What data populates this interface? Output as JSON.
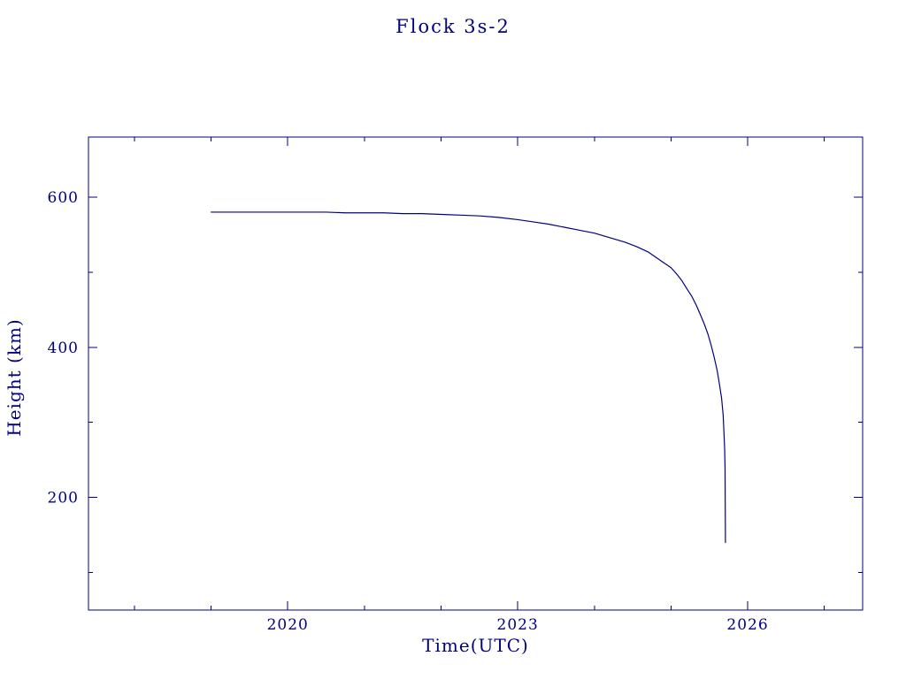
{
  "page": {
    "background_color": "#ffffff"
  },
  "chart_data": {
    "type": "line",
    "title": "Flock 3s-2",
    "xlabel": "Time(UTC)",
    "ylabel": "Height (km)",
    "xlim": [
      2017.4,
      2027.5
    ],
    "ylim": [
      50,
      680
    ],
    "x_major_ticks": [
      2020,
      2023,
      2026
    ],
    "x_minor_ticks": [
      2018,
      2019,
      2021,
      2022,
      2024,
      2025,
      2027
    ],
    "y_major_ticks": [
      200,
      400,
      600
    ],
    "y_minor_ticks": [
      100,
      300,
      500
    ],
    "grid": false,
    "legend": "none",
    "line_color": "#000080",
    "axis_color": "#000080",
    "series": [
      {
        "name": "orbital height",
        "points": [
          [
            2019.0,
            580
          ],
          [
            2019.25,
            580
          ],
          [
            2019.5,
            580
          ],
          [
            2019.75,
            580
          ],
          [
            2020.0,
            580
          ],
          [
            2020.25,
            580
          ],
          [
            2020.5,
            580
          ],
          [
            2020.75,
            579
          ],
          [
            2021.0,
            579
          ],
          [
            2021.25,
            579
          ],
          [
            2021.5,
            578
          ],
          [
            2021.75,
            578
          ],
          [
            2022.0,
            577
          ],
          [
            2022.25,
            576
          ],
          [
            2022.5,
            575
          ],
          [
            2022.75,
            573
          ],
          [
            2023.0,
            570
          ],
          [
            2023.2,
            567
          ],
          [
            2023.4,
            564
          ],
          [
            2023.6,
            560
          ],
          [
            2023.8,
            556
          ],
          [
            2024.0,
            552
          ],
          [
            2024.2,
            546
          ],
          [
            2024.4,
            540
          ],
          [
            2024.55,
            534
          ],
          [
            2024.7,
            527
          ],
          [
            2024.8,
            520
          ],
          [
            2024.9,
            513
          ],
          [
            2025.0,
            506
          ],
          [
            2025.07,
            498
          ],
          [
            2025.14,
            489
          ],
          [
            2025.2,
            479
          ],
          [
            2025.27,
            468
          ],
          [
            2025.33,
            456
          ],
          [
            2025.38,
            444
          ],
          [
            2025.43,
            432
          ],
          [
            2025.48,
            418
          ],
          [
            2025.52,
            404
          ],
          [
            2025.56,
            388
          ],
          [
            2025.6,
            370
          ],
          [
            2025.63,
            352
          ],
          [
            2025.66,
            332
          ],
          [
            2025.68,
            310
          ],
          [
            2025.69,
            288
          ],
          [
            2025.7,
            264
          ],
          [
            2025.705,
            238
          ],
          [
            2025.71,
            140
          ]
        ]
      }
    ]
  }
}
